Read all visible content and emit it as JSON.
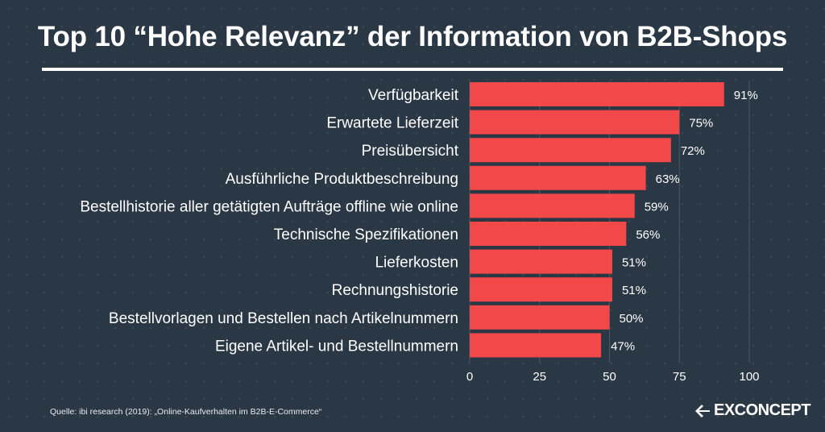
{
  "title": "Top 10 “Hohe Relevanz” der Information von B2B-Shops",
  "source": "Quelle: ibi research (2019): „Online-Kaufverhalten im B2B-E-Commerce“",
  "logo_text": "EXCONCEPT",
  "colors": {
    "bar": "#f2484a",
    "background": "#2a3744",
    "text": "#ffffff",
    "grid": "#4b5866"
  },
  "chart_data": {
    "type": "bar",
    "orientation": "horizontal",
    "categories": [
      "Verfügbarkeit",
      "Erwartete Lieferzeit",
      "Preisübersicht",
      "Ausführliche Produktbeschreibung",
      "Bestellhistorie aller getätigten Aufträge offline wie online",
      "Technische Spezifikationen",
      "Lieferkosten",
      "Rechnungshistorie",
      "Bestellvorlagen und Bestellen nach Artikelnummern",
      "Eigene Artikel- und Bestellnummern"
    ],
    "values": [
      91,
      75,
      72,
      63,
      59,
      56,
      51,
      51,
      50,
      47
    ],
    "value_labels": [
      "91%",
      "75%",
      "72%",
      "63%",
      "59%",
      "56%",
      "51%",
      "51%",
      "50%",
      "47%"
    ],
    "xlim": [
      0,
      100
    ],
    "xticks": [
      0,
      25,
      50,
      75,
      100
    ],
    "grid": true
  }
}
